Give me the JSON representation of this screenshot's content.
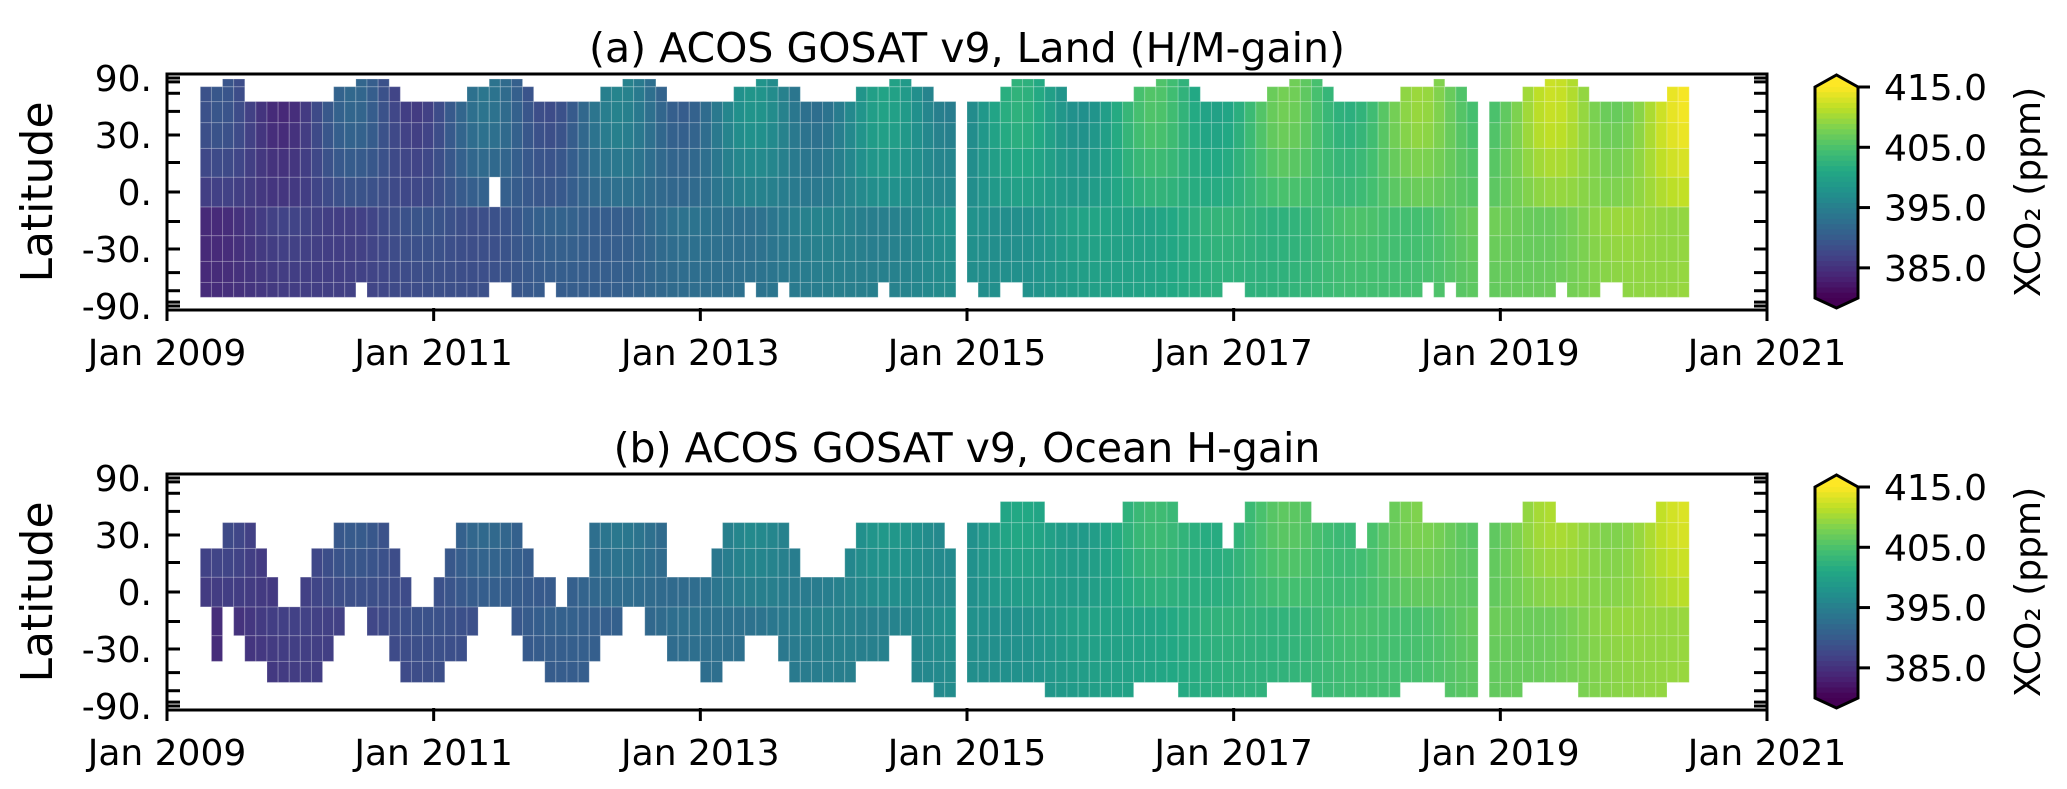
{
  "chart_data": {
    "type": "heatmap",
    "colormap": {
      "name": "viridis",
      "stops": [
        "#440154",
        "#482475",
        "#414487",
        "#355f8d",
        "#2a788e",
        "#21918c",
        "#22a884",
        "#44bf70",
        "#7ad151",
        "#bddf26",
        "#fde725"
      ],
      "vmin": 380.0,
      "vmax": 415.0,
      "extend": "both"
    },
    "x_axis": {
      "type": "time-monthly",
      "start": "Jan 2009",
      "end": "Jan 2021",
      "tick_labels": [
        "Jan 2009",
        "Jan 2011",
        "Jan 2013",
        "Jan 2015",
        "Jan 2017",
        "Jan 2019",
        "Jan 2021"
      ],
      "tick_months": [
        0,
        24,
        48,
        72,
        96,
        120,
        144
      ]
    },
    "y_axis": {
      "label": "Latitude",
      "scale": "sine-latitude",
      "range": [
        -90,
        90
      ],
      "tick_values": [
        90,
        30,
        0,
        -30,
        -90
      ],
      "tick_labels": [
        "90.",
        "30.",
        "0.",
        "-30.",
        "-90."
      ],
      "minor_tick_step_deg": 15
    },
    "colorbar": {
      "label": "XCO₂ (ppm)",
      "tick_values": [
        415.0,
        405.0,
        395.0,
        385.0
      ],
      "tick_labels": [
        "415.0",
        "405.0",
        "395.0",
        "385.0"
      ]
    },
    "lat_bin_centers": [
      -60,
      -45,
      -30,
      -15,
      0,
      15,
      30,
      45,
      60,
      75
    ],
    "lat_bin_width_deg": 15,
    "xco2_model": {
      "note_units": "ppm",
      "annual_mean_years": [
        2009,
        2010,
        2011,
        2012,
        2013,
        2014,
        2015,
        2016,
        2017,
        2018,
        2019,
        2020
      ],
      "annual_mean_xco2": [
        385.8,
        388.0,
        389.9,
        391.9,
        394.5,
        396.5,
        398.8,
        401.8,
        403.9,
        406.0,
        408.5,
        410.9
      ],
      "lat_offset": [
        -0.8,
        -0.8,
        -0.7,
        -0.5,
        0.0,
        0.4,
        0.6,
        0.6,
        0.5,
        0.5
      ],
      "seasonal_half_amplitude": [
        0.3,
        0.4,
        0.6,
        0.8,
        1.2,
        2.0,
        2.8,
        3.2,
        3.5,
        3.5
      ],
      "seasonal_peak_month": 4
    },
    "panels": [
      {
        "id": "a",
        "title": "(a) ACOS GOSAT v9, Land (H/M-gain)",
        "amplitude_scale": 1.0,
        "coverage": [
          {
            "lat": -60,
            "months": [
              [
                3,
                16
              ],
              [
                18,
                28
              ],
              [
                31,
                33
              ],
              [
                35,
                51
              ],
              [
                53,
                54
              ],
              [
                56,
                63
              ],
              [
                65,
                70
              ],
              [
                73,
                74
              ],
              [
                77,
                94
              ],
              [
                97,
                112
              ],
              [
                114,
                114
              ],
              [
                116,
                117
              ],
              [
                119,
                124
              ],
              [
                126,
                128
              ],
              [
                131,
                136
              ]
            ]
          },
          {
            "lat": -45,
            "months": [
              [
                3,
                70
              ],
              [
                72,
                117
              ],
              [
                119,
                136
              ]
            ]
          },
          {
            "lat": -30,
            "months": [
              [
                3,
                70
              ],
              [
                72,
                117
              ],
              [
                119,
                136
              ]
            ]
          },
          {
            "lat": -15,
            "months": [
              [
                3,
                70
              ],
              [
                72,
                117
              ],
              [
                119,
                136
              ]
            ]
          },
          {
            "lat": 0,
            "months": [
              [
                3,
                28
              ],
              [
                30,
                70
              ],
              [
                72,
                117
              ],
              [
                119,
                136
              ]
            ]
          },
          {
            "lat": 15,
            "months": [
              [
                3,
                70
              ],
              [
                72,
                117
              ],
              [
                119,
                136
              ]
            ]
          },
          {
            "lat": 30,
            "months": [
              [
                3,
                70
              ],
              [
                72,
                117
              ],
              [
                119,
                136
              ]
            ]
          },
          {
            "lat": 45,
            "months": [
              [
                3,
                70
              ],
              [
                72,
                117
              ],
              [
                119,
                136
              ]
            ]
          },
          {
            "lat": 60,
            "months": [
              [
                3,
                6
              ],
              [
                15,
                20
              ],
              [
                27,
                32
              ],
              [
                39,
                44
              ],
              [
                51,
                56
              ],
              [
                62,
                68
              ],
              [
                75,
                80
              ],
              [
                87,
                92
              ],
              [
                99,
                104
              ],
              [
                111,
                116
              ],
              [
                122,
                127
              ],
              [
                135,
                136
              ]
            ]
          },
          {
            "lat": 75,
            "months": [
              [
                5,
                6
              ],
              [
                17,
                19
              ],
              [
                29,
                31
              ],
              [
                41,
                43
              ],
              [
                53,
                54
              ],
              [
                65,
                66
              ],
              [
                76,
                78
              ],
              [
                89,
                91
              ],
              [
                101,
                103
              ],
              [
                114,
                114
              ],
              [
                124,
                126
              ]
            ]
          }
        ]
      },
      {
        "id": "b",
        "title": "(b) ACOS GOSAT v9, Ocean H-gain",
        "amplitude_scale": 0.6,
        "coverage": [
          {
            "lat": -60,
            "months": [
              [
                69,
                70
              ],
              [
                79,
                86
              ],
              [
                91,
                98
              ],
              [
                103,
                110
              ],
              [
                115,
                117
              ],
              [
                119,
                121
              ],
              [
                127,
                134
              ]
            ]
          },
          {
            "lat": -45,
            "months": [
              [
                9,
                13
              ],
              [
                21,
                24
              ],
              [
                34,
                37
              ],
              [
                48,
                49
              ],
              [
                56,
                61
              ],
              [
                67,
                70
              ],
              [
                72,
                117
              ],
              [
                119,
                136
              ]
            ]
          },
          {
            "lat": -30,
            "months": [
              [
                4,
                4
              ],
              [
                7,
                14
              ],
              [
                20,
                26
              ],
              [
                32,
                38
              ],
              [
                45,
                51
              ],
              [
                55,
                64
              ],
              [
                67,
                70
              ],
              [
                72,
                117
              ],
              [
                119,
                136
              ]
            ]
          },
          {
            "lat": -15,
            "months": [
              [
                4,
                4
              ],
              [
                6,
                15
              ],
              [
                18,
                27
              ],
              [
                31,
                40
              ],
              [
                43,
                70
              ],
              [
                72,
                117
              ],
              [
                119,
                136
              ]
            ]
          },
          {
            "lat": 0,
            "months": [
              [
                3,
                9
              ],
              [
                12,
                21
              ],
              [
                24,
                34
              ],
              [
                36,
                70
              ],
              [
                72,
                117
              ],
              [
                119,
                136
              ]
            ]
          },
          {
            "lat": 15,
            "months": [
              [
                3,
                8
              ],
              [
                13,
                20
              ],
              [
                25,
                32
              ],
              [
                38,
                44
              ],
              [
                49,
                56
              ],
              [
                61,
                70
              ],
              [
                72,
                117
              ],
              [
                119,
                136
              ]
            ]
          },
          {
            "lat": 30,
            "months": [
              [
                5,
                7
              ],
              [
                15,
                19
              ],
              [
                26,
                31
              ],
              [
                38,
                44
              ],
              [
                50,
                55
              ],
              [
                62,
                69
              ],
              [
                72,
                94
              ],
              [
                96,
                106
              ],
              [
                108,
                117
              ],
              [
                119,
                136
              ]
            ]
          },
          {
            "lat": 45,
            "months": [
              [
                75,
                78
              ],
              [
                86,
                90
              ],
              [
                97,
                102
              ],
              [
                110,
                112
              ],
              [
                122,
                124
              ],
              [
                134,
                136
              ]
            ]
          }
        ]
      }
    ]
  }
}
